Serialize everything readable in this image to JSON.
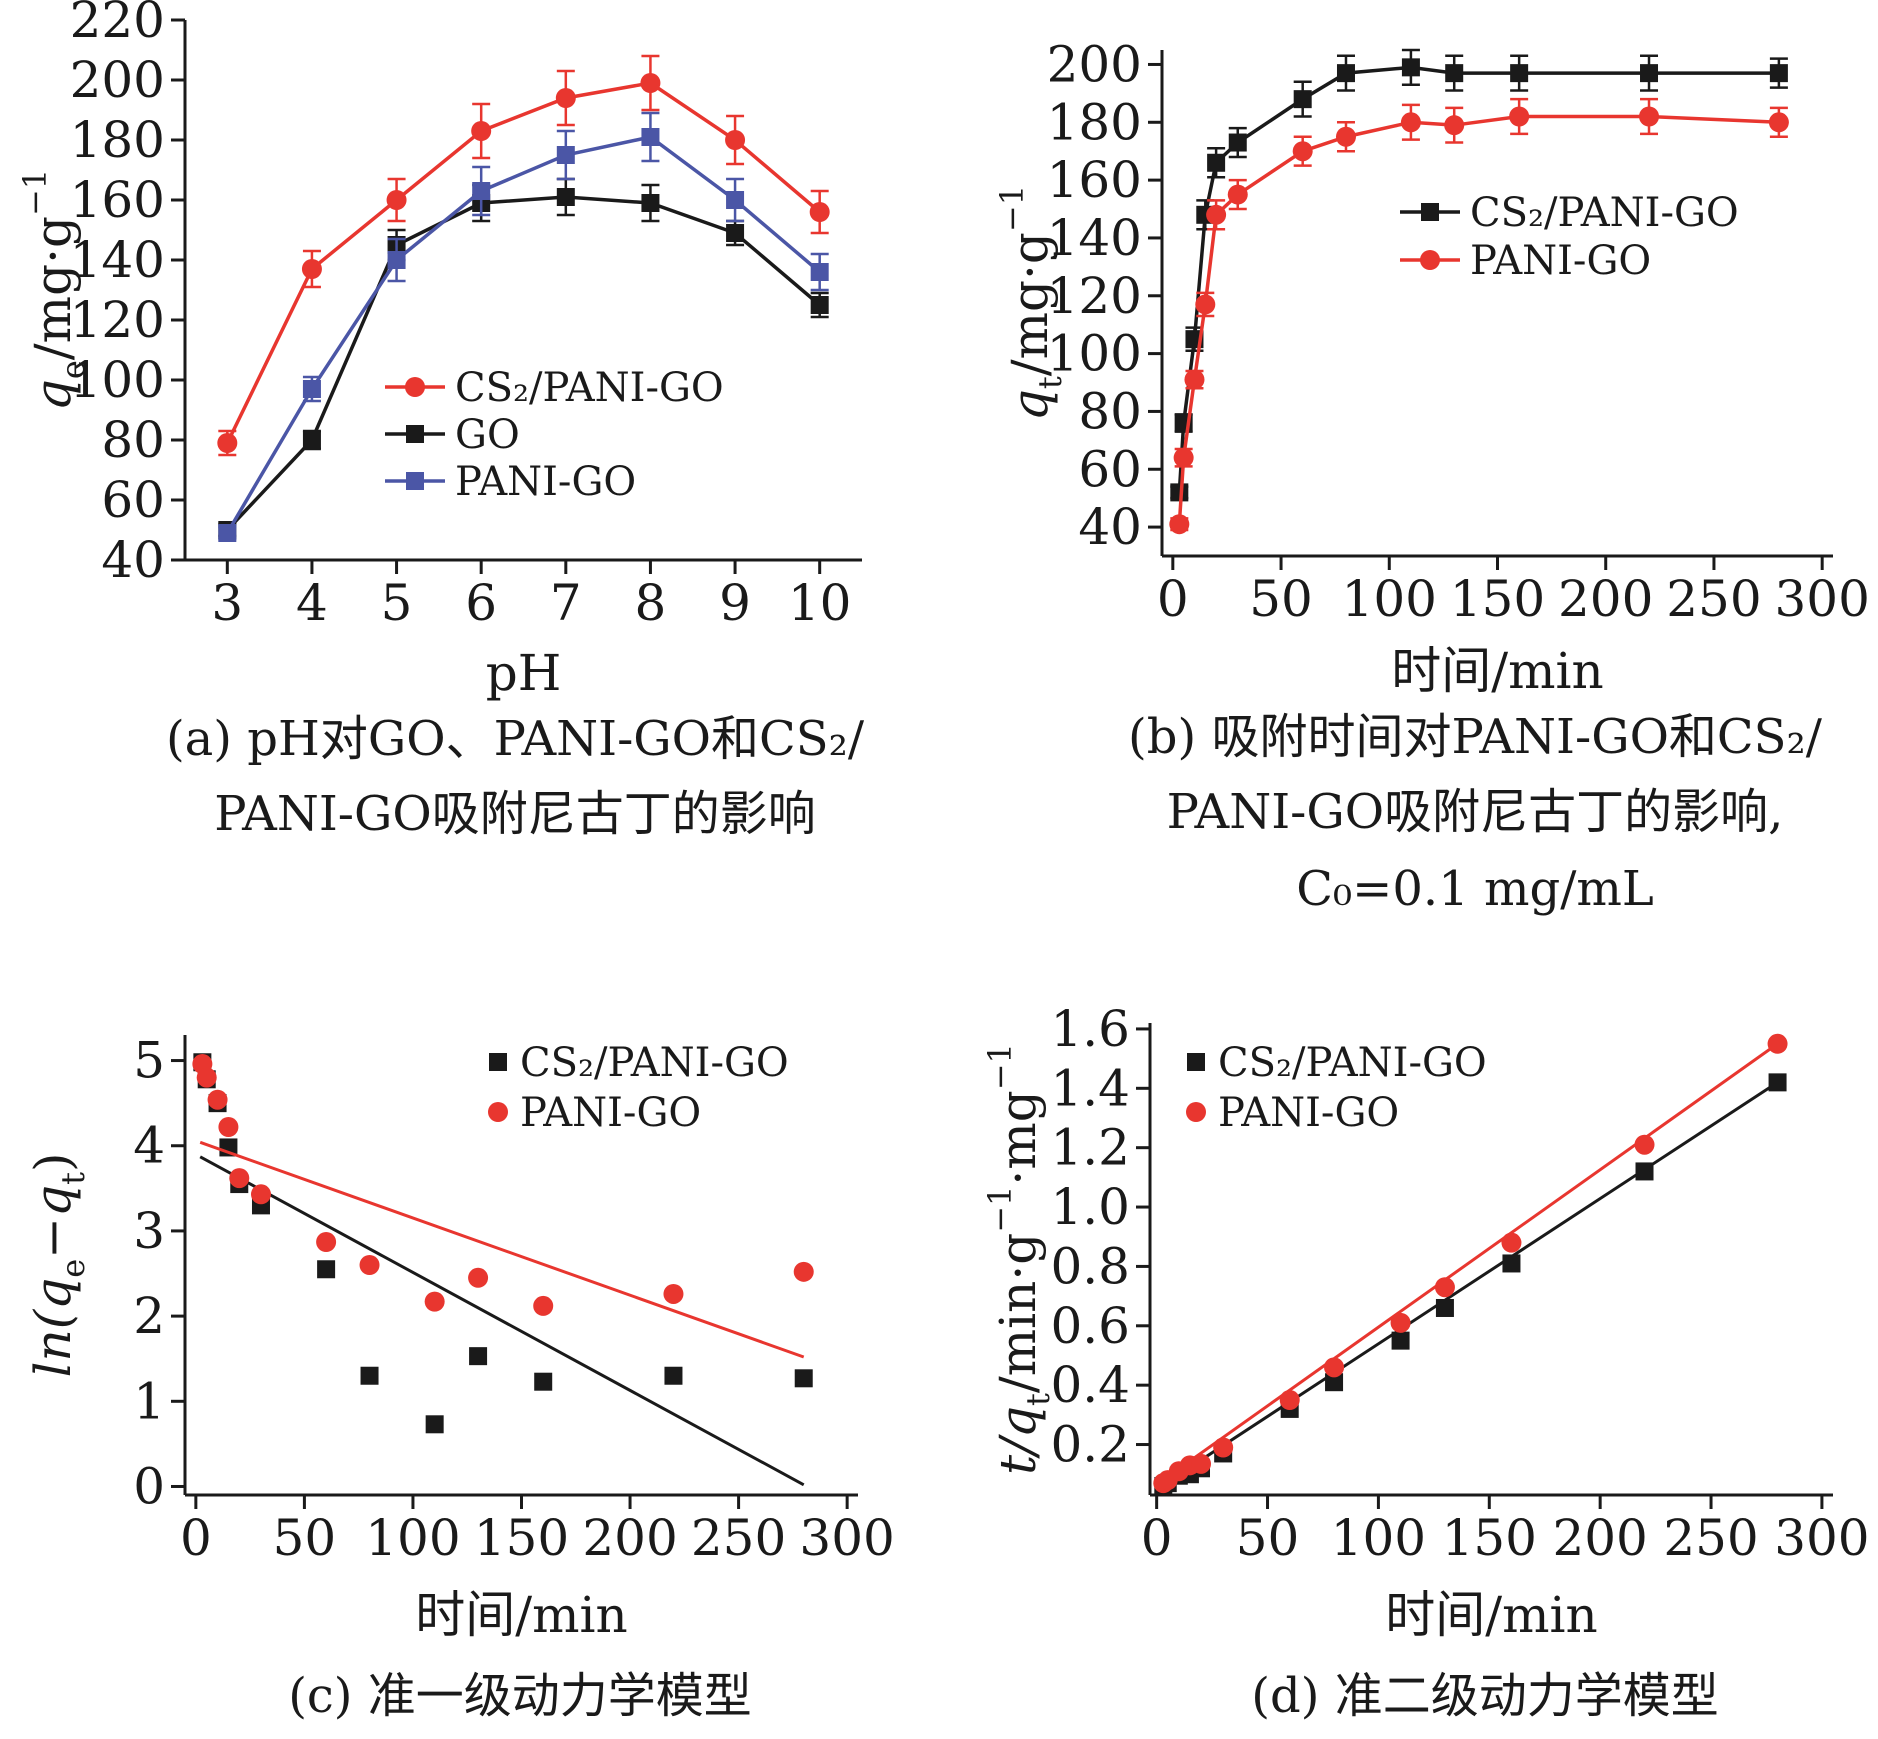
{
  "colors": {
    "red": "#e8362f",
    "black": "#1a1a1a",
    "blue": "#4b56a6"
  },
  "chart_data": [
    {
      "id": "a",
      "type": "line",
      "xlabel": "pH",
      "ylabel": "q",
      "ylabel_sub": "e",
      "ylabel_unit": "/mg·g",
      "ylabel_sup": "−1",
      "caption_lines": [
        "(a) pH对GO、PANI-GO和CS₂/",
        "PANI-GO吸附尼古丁的影响"
      ],
      "xlim": [
        2.5,
        10.5
      ],
      "ylim": [
        40,
        220
      ],
      "xticks": [
        3,
        4,
        5,
        6,
        7,
        8,
        9,
        10
      ],
      "yticks": [
        40,
        60,
        80,
        100,
        120,
        140,
        160,
        180,
        200,
        220
      ],
      "legend_position": "center-right",
      "series": [
        {
          "name": "CS₂/PANI-GO",
          "color": "red",
          "marker": "circle",
          "x": [
            3,
            4,
            5,
            6,
            7,
            8,
            9,
            10
          ],
          "y": [
            79,
            137,
            160,
            183,
            194,
            199,
            180,
            156
          ],
          "err": [
            4,
            6,
            7,
            9,
            9,
            9,
            8,
            7
          ]
        },
        {
          "name": "GO",
          "color": "black",
          "marker": "square",
          "x": [
            3,
            4,
            5,
            6,
            7,
            8,
            9,
            10
          ],
          "y": [
            50,
            80,
            145,
            159,
            161,
            159,
            149,
            125
          ],
          "err": [
            2,
            3,
            5,
            6,
            6,
            6,
            4,
            4
          ]
        },
        {
          "name": "PANI-GO",
          "color": "blue",
          "marker": "square",
          "x": [
            3,
            4,
            5,
            6,
            7,
            8,
            9,
            10
          ],
          "y": [
            49,
            97,
            140,
            163,
            175,
            181,
            160,
            136
          ],
          "err": [
            2,
            4,
            7,
            8,
            8,
            8,
            7,
            6
          ]
        }
      ]
    },
    {
      "id": "b",
      "type": "line",
      "xlabel": "时间/min",
      "ylabel": "q",
      "ylabel_sub": "t",
      "ylabel_unit": "/mg·g",
      "ylabel_sup": "−1",
      "caption_lines": [
        "(b) 吸附时间对PANI-GO和CS₂/",
        "PANI-GO吸附尼古丁的影响,",
        "C₀=0.1 mg/mL"
      ],
      "xlim": [
        -5,
        305
      ],
      "ylim": [
        30,
        205
      ],
      "xticks": [
        0,
        50,
        100,
        150,
        200,
        250,
        300
      ],
      "yticks": [
        40,
        60,
        80,
        100,
        120,
        140,
        160,
        180,
        200
      ],
      "legend_position": "center-right",
      "series": [
        {
          "name": "CS₂/PANI-GO",
          "color": "black",
          "marker": "square",
          "x": [
            3,
            5,
            10,
            15,
            20,
            30,
            60,
            80,
            110,
            130,
            160,
            220,
            280
          ],
          "y": [
            52,
            76,
            105,
            148,
            166,
            173,
            188,
            197,
            199,
            197,
            197,
            197,
            197
          ],
          "err": [
            2,
            3,
            4,
            5,
            5,
            5,
            6,
            6,
            6,
            6,
            6,
            6,
            5
          ]
        },
        {
          "name": "PANI-GO",
          "color": "red",
          "marker": "circle",
          "x": [
            3,
            5,
            10,
            15,
            20,
            30,
            60,
            80,
            110,
            130,
            160,
            220,
            280
          ],
          "y": [
            41,
            64,
            91,
            117,
            148,
            155,
            170,
            175,
            180,
            179,
            182,
            182,
            180
          ],
          "err": [
            2,
            3,
            3,
            4,
            5,
            5,
            5,
            5,
            6,
            6,
            6,
            6,
            5
          ]
        }
      ]
    },
    {
      "id": "c",
      "type": "scatter",
      "xlabel": "时间/min",
      "ylabel": "ln(q",
      "ylabel_sub": "e",
      "ylabel_mid": "−q",
      "ylabel_sub2": "t",
      "ylabel_end": ")",
      "caption_lines": [
        "(c) 准一级动力学模型"
      ],
      "xlim": [
        -5,
        305
      ],
      "ylim": [
        -0.1,
        5.3
      ],
      "xticks": [
        0,
        50,
        100,
        150,
        200,
        250,
        300
      ],
      "yticks": [
        0,
        1,
        2,
        3,
        4,
        5
      ],
      "legend_position": "top-right",
      "series": [
        {
          "name": "CS₂/PANI-GO",
          "color": "black",
          "marker": "square",
          "x": [
            3,
            5,
            10,
            15,
            20,
            30,
            60,
            80,
            110,
            130,
            160,
            220,
            280
          ],
          "y": [
            4.98,
            4.78,
            4.5,
            3.98,
            3.55,
            3.3,
            2.55,
            1.3,
            0.73,
            1.53,
            1.23,
            1.3,
            1.27
          ],
          "fit": [
            [
              2,
              3.87
            ],
            [
              280,
              0.02
            ]
          ]
        },
        {
          "name": "PANI-GO",
          "color": "red",
          "marker": "circle",
          "x": [
            3,
            5,
            10,
            15,
            20,
            30,
            60,
            80,
            110,
            130,
            160,
            220,
            280
          ],
          "y": [
            4.96,
            4.8,
            4.54,
            4.22,
            3.62,
            3.43,
            2.87,
            2.6,
            2.17,
            2.45,
            2.12,
            2.26,
            2.52
          ],
          "fit": [
            [
              2,
              4.04
            ],
            [
              280,
              1.52
            ]
          ]
        }
      ]
    },
    {
      "id": "d",
      "type": "scatter",
      "xlabel": "时间/min",
      "ylabel": "t/q",
      "ylabel_sub": "t",
      "ylabel_unit": "/min·g",
      "ylabel_sup": "−1",
      "ylabel_end": "·mg",
      "ylabel_sup2": "−1",
      "caption_lines": [
        "(d) 准二级动力学模型"
      ],
      "xlim": [
        -3,
        305
      ],
      "ylim": [
        0.03,
        1.62
      ],
      "xticks": [
        0,
        50,
        100,
        150,
        200,
        250,
        300
      ],
      "yticks": [
        0.2,
        0.4,
        0.6,
        0.8,
        1.0,
        1.2,
        1.4,
        1.6
      ],
      "ytick_labels": [
        "0.2",
        "0.4",
        "0.6",
        "0.8",
        "1.0",
        "1.2",
        "1.4",
        "1.6"
      ],
      "legend_position": "top-left",
      "series": [
        {
          "name": "CS₂/PANI-GO",
          "color": "black",
          "marker": "square",
          "x": [
            3,
            5,
            10,
            15,
            20,
            30,
            60,
            80,
            110,
            130,
            160,
            220,
            280
          ],
          "y": [
            0.06,
            0.07,
            0.095,
            0.1,
            0.12,
            0.17,
            0.32,
            0.41,
            0.55,
            0.66,
            0.81,
            1.12,
            1.42
          ],
          "fit": [
            [
              0,
              0.05
            ],
            [
              280,
              1.42
            ]
          ]
        },
        {
          "name": "PANI-GO",
          "color": "red",
          "marker": "circle",
          "x": [
            3,
            5,
            10,
            15,
            20,
            30,
            60,
            80,
            110,
            130,
            160,
            220,
            280
          ],
          "y": [
            0.07,
            0.08,
            0.11,
            0.13,
            0.135,
            0.19,
            0.35,
            0.46,
            0.61,
            0.73,
            0.88,
            1.21,
            1.55
          ],
          "fit": [
            [
              0,
              0.065
            ],
            [
              280,
              1.55
            ]
          ]
        }
      ]
    }
  ]
}
